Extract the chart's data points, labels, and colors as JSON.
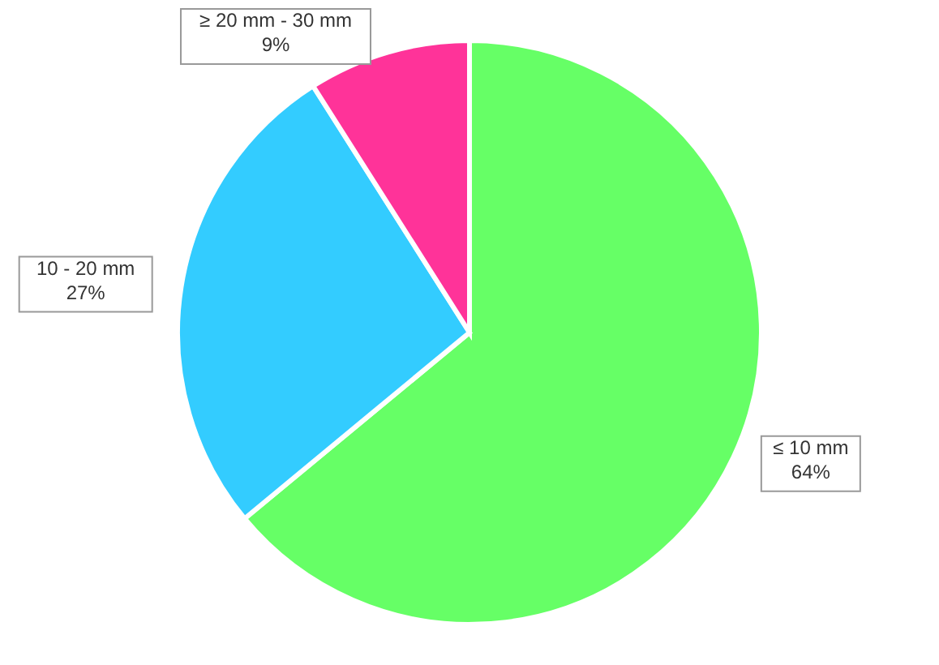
{
  "chart_data": {
    "type": "pie",
    "categories": [
      "≤ 10 mm",
      "10 - 20 mm",
      "≥ 20 mm - 30 mm"
    ],
    "values": [
      64,
      27,
      9
    ],
    "value_labels": [
      "64%",
      "27%",
      "9%"
    ],
    "colors": [
      "#66ff66",
      "#33ccff",
      "#ff3399"
    ]
  }
}
